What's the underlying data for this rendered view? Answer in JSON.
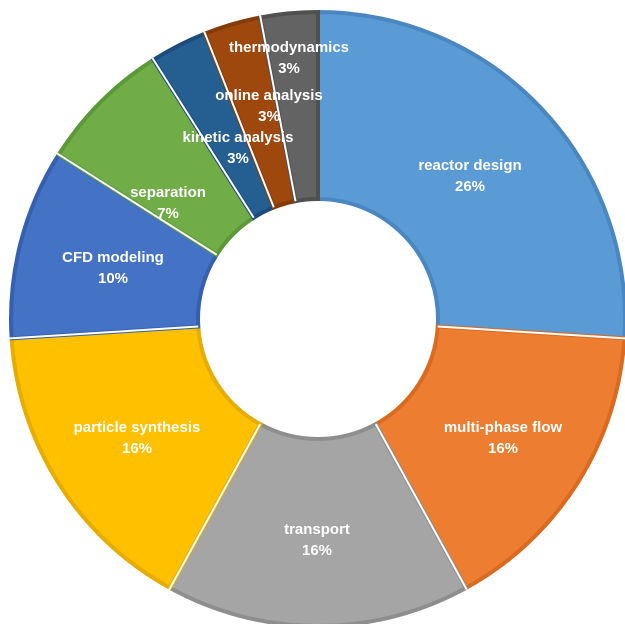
{
  "chart_data": {
    "type": "pie",
    "variant": "donut",
    "title": "",
    "categories": [
      "reactor design",
      "multi-phase flow",
      "transport",
      "particle synthesis",
      "CFD modeling",
      "separation",
      "kinetic analysis",
      "online analysis",
      "thermodynamics"
    ],
    "values": [
      26,
      16,
      16,
      16,
      10,
      7,
      3,
      3,
      3
    ],
    "value_labels": [
      "26%",
      "16%",
      "16%",
      "16%",
      "10%",
      "7%",
      "3%",
      "3%",
      "3%"
    ],
    "colors": [
      "#5b9bd5",
      "#ed7d31",
      "#a5a5a5",
      "#ffc000",
      "#4472c4",
      "#70ad47",
      "#255e91",
      "#9e480e",
      "#636363"
    ],
    "border_colors": [
      "#4a86c0",
      "#d96a1f",
      "#8e8e8e",
      "#e6ac00",
      "#3560b0",
      "#5c9838",
      "#1b4c7c",
      "#853a08",
      "#505050"
    ],
    "start_angle_deg": 0,
    "direction": "clockwise",
    "legend": "none",
    "labels_inside": true
  }
}
